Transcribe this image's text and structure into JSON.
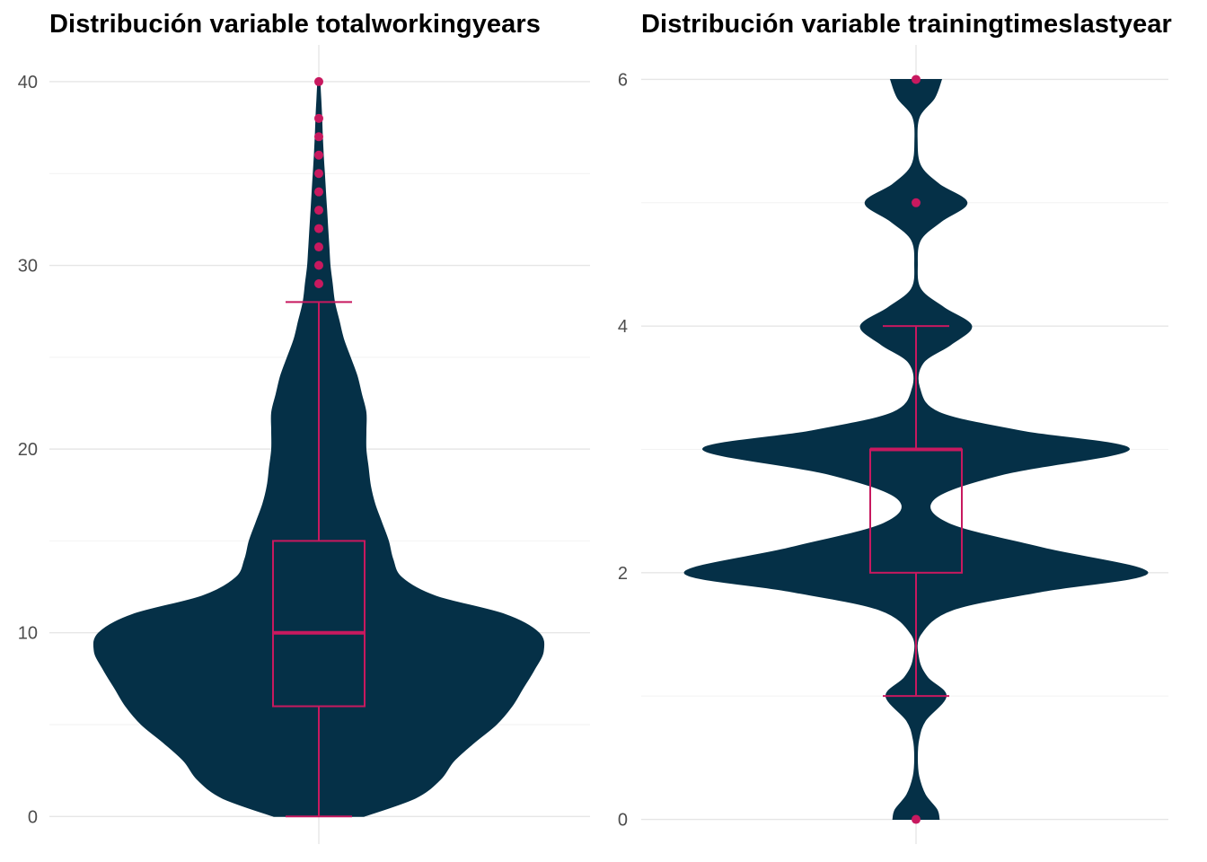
{
  "colors": {
    "violin_fill": "#053047",
    "boxplot": "#c8195f",
    "grid_major": "#e6e6e6",
    "grid_minor": "#f2f2f2",
    "tick_text": "#4d4d4d"
  },
  "chart_data": [
    {
      "type": "violin",
      "title": "Distribución variable totalworkingyears",
      "xlabel": "",
      "ylabel": "",
      "ylim": [
        -1.5,
        42
      ],
      "yticks": [
        {
          "value": 0,
          "label": "0"
        },
        {
          "value": 10,
          "label": "10"
        },
        {
          "value": 20,
          "label": "20"
        },
        {
          "value": 30,
          "label": "30"
        },
        {
          "value": 40,
          "label": "40"
        }
      ],
      "minor_ticks": [
        5,
        15,
        25,
        35
      ],
      "grid": true,
      "violin_halfwidth_max": 250,
      "density": [
        [
          0,
          0.2
        ],
        [
          1,
          0.43
        ],
        [
          2,
          0.54
        ],
        [
          3,
          0.6
        ],
        [
          4,
          0.69
        ],
        [
          5,
          0.79
        ],
        [
          6,
          0.86
        ],
        [
          7,
          0.91
        ],
        [
          8,
          0.96
        ],
        [
          9,
          1.0
        ],
        [
          10,
          0.98
        ],
        [
          11,
          0.83
        ],
        [
          12,
          0.52
        ],
        [
          13,
          0.37
        ],
        [
          14,
          0.33
        ],
        [
          15,
          0.31
        ],
        [
          16,
          0.28
        ],
        [
          17,
          0.25
        ],
        [
          18,
          0.23
        ],
        [
          19,
          0.22
        ],
        [
          20,
          0.21
        ],
        [
          21,
          0.21
        ],
        [
          22,
          0.21
        ],
        [
          23,
          0.19
        ],
        [
          24,
          0.17
        ],
        [
          25,
          0.14
        ],
        [
          26,
          0.11
        ],
        [
          27,
          0.09
        ],
        [
          28,
          0.07
        ],
        [
          29,
          0.06
        ],
        [
          30,
          0.05
        ],
        [
          31,
          0.045
        ],
        [
          32,
          0.04
        ],
        [
          33,
          0.035
        ],
        [
          34,
          0.03
        ],
        [
          35,
          0.025
        ],
        [
          36,
          0.02
        ],
        [
          37,
          0.016
        ],
        [
          38,
          0.013
        ],
        [
          39,
          0.009
        ],
        [
          40,
          0.005
        ]
      ],
      "boxplot": {
        "whisker_low": 0,
        "q1": 6,
        "median": 10,
        "q3": 15,
        "whisker_high": 28
      },
      "outliers": [
        29,
        30,
        31,
        32,
        33,
        34,
        35,
        36,
        37,
        38,
        40
      ]
    },
    {
      "type": "violin",
      "title": "Distribución variable trainingtimeslastyear",
      "xlabel": "",
      "ylabel": "",
      "ylim": [
        -0.2,
        6.28
      ],
      "yticks": [
        {
          "value": 0,
          "label": "0"
        },
        {
          "value": 2,
          "label": "2"
        },
        {
          "value": 4,
          "label": "4"
        },
        {
          "value": 6,
          "label": "6"
        }
      ],
      "minor_ticks": [
        1,
        3,
        5
      ],
      "grid": true,
      "violin_halfwidth_max": 258,
      "density": [
        [
          0,
          0.1
        ],
        [
          0.08,
          0.09
        ],
        [
          0.2,
          0.04
        ],
        [
          0.35,
          0.012
        ],
        [
          0.5,
          0.006
        ],
        [
          0.65,
          0.012
        ],
        [
          0.8,
          0.04
        ],
        [
          1,
          0.13
        ],
        [
          1.15,
          0.05
        ],
        [
          1.3,
          0.012
        ],
        [
          1.5,
          0.02
        ],
        [
          1.7,
          0.16
        ],
        [
          1.85,
          0.55
        ],
        [
          2,
          1.0
        ],
        [
          2.2,
          0.55
        ],
        [
          2.4,
          0.14
        ],
        [
          2.6,
          0.08
        ],
        [
          2.8,
          0.38
        ],
        [
          3,
          0.92
        ],
        [
          3.15,
          0.45
        ],
        [
          3.3,
          0.1
        ],
        [
          3.5,
          0.015
        ],
        [
          3.7,
          0.03
        ],
        [
          3.85,
          0.15
        ],
        [
          4,
          0.24
        ],
        [
          4.15,
          0.12
        ],
        [
          4.3,
          0.02
        ],
        [
          4.5,
          0.006
        ],
        [
          4.7,
          0.02
        ],
        [
          4.85,
          0.11
        ],
        [
          5,
          0.22
        ],
        [
          5.15,
          0.1
        ],
        [
          5.3,
          0.02
        ],
        [
          5.5,
          0.005
        ],
        [
          5.7,
          0.015
        ],
        [
          5.85,
          0.08
        ],
        [
          6,
          0.11
        ]
      ],
      "boxplot": {
        "whisker_low": 1,
        "q1": 2,
        "median": 3,
        "q3": 3,
        "whisker_high": 4
      },
      "outliers": [
        0,
        5,
        6
      ]
    }
  ]
}
